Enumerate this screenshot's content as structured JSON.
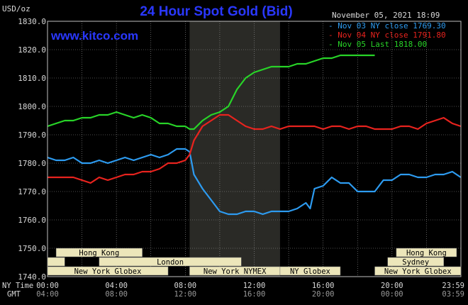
{
  "title": "24 Hour Spot Gold (Bid)",
  "unit_label": "USD/oz",
  "timestamp": "November 05, 2021 18:09",
  "watermark": "www.kitco.com",
  "colors": {
    "title": "#2a38ff",
    "watermark": "#2a38ff",
    "axis_text": "#d9d9d9",
    "grid": "#9a9a9a",
    "nymex_shade": "#2a2a26",
    "session_bar": "#ece6ba",
    "session_text": "#000000"
  },
  "legend": [
    {
      "label": "Nov 03 NY close 1769.30",
      "color": "#2d9bf0"
    },
    {
      "label": "Nov 04 NY close 1791.80",
      "color": "#e8231e"
    },
    {
      "label": "Nov 05 Last 1818.00",
      "color": "#28d428"
    }
  ],
  "sessions": {
    "row1": [
      {
        "label": "Hong Kong",
        "start": 0.5,
        "end": 5.5
      },
      {
        "label": "Hong Kong",
        "start": 20.25,
        "end": 23.75
      }
    ],
    "row2": [
      {
        "label": "",
        "start": 0,
        "end": 1
      },
      {
        "label": "London",
        "start": 3,
        "end": 11.25
      },
      {
        "label": "Sydney",
        "start": 19.75,
        "end": 23
      }
    ],
    "row3": [
      {
        "label": "New York Globex",
        "start": 0,
        "end": 7
      },
      {
        "label": "New York NYMEX",
        "start": 8.25,
        "end": 13.5
      },
      {
        "label": "NY Globex",
        "start": 13.5,
        "end": 17
      },
      {
        "label": "New York Globex",
        "start": 19,
        "end": 24
      }
    ]
  },
  "time_rows": {
    "ny_label": "NY Time",
    "gmt_label": "GMT",
    "ny_ticks": [
      "00:00",
      "04:00",
      "08:00",
      "12:00",
      "16:00",
      "20:00",
      "23:59"
    ],
    "gmt_ticks": [
      "04:00",
      "08:00",
      "12:00",
      "16:00",
      "20:00",
      "00:00",
      "03:59"
    ]
  },
  "chart_data": {
    "type": "line",
    "title": "24 Hour Spot Gold (Bid)",
    "ylabel": "USD/oz",
    "xlabel": "",
    "x_unit": "hours (NY time)",
    "xlim": [
      0,
      24
    ],
    "ylim": [
      1740,
      1830
    ],
    "y_ticks": [
      "1740.0",
      "1750.0",
      "1760.0",
      "1770.0",
      "1780.0",
      "1790.0",
      "1800.0",
      "1810.0",
      "1820.0",
      "1830.0"
    ],
    "x_ticks": [
      "00:00",
      "04:00",
      "08:00",
      "12:00",
      "16:00",
      "20:00",
      "23:59"
    ],
    "nymex_session": [
      8.25,
      13.5
    ],
    "grid": true,
    "legend_position": "top-right",
    "series": [
      {
        "name": "Nov 03 NY close 1769.30",
        "color": "#2d9bf0",
        "x": [
          0,
          0.5,
          1,
          1.5,
          2,
          2.5,
          3,
          3.5,
          4,
          4.5,
          5,
          5.5,
          6,
          6.5,
          7,
          7.5,
          8,
          8.25,
          8.5,
          9,
          9.5,
          10,
          10.5,
          11,
          11.5,
          12,
          12.5,
          13,
          13.5,
          14,
          14.5,
          15,
          15.25,
          15.5,
          16,
          16.5,
          17,
          17.5,
          18,
          18.5,
          19,
          19.5,
          20,
          20.5,
          21,
          21.5,
          22,
          22.5,
          23,
          23.5,
          23.99
        ],
        "y": [
          1782,
          1781,
          1781,
          1782,
          1780,
          1780,
          1781,
          1780,
          1781,
          1782,
          1781,
          1782,
          1783,
          1782,
          1783,
          1785,
          1785,
          1784,
          1776,
          1771,
          1767,
          1763,
          1762,
          1762,
          1763,
          1763,
          1762,
          1763,
          1763,
          1763,
          1764,
          1766,
          1764,
          1771,
          1772,
          1775,
          1773,
          1773,
          1770,
          1770,
          1770,
          1774,
          1774,
          1776,
          1776,
          1775,
          1775,
          1776,
          1776,
          1777,
          1775
        ]
      },
      {
        "name": "Nov 04 NY close 1791.80",
        "color": "#e8231e",
        "x": [
          0,
          0.5,
          1,
          1.5,
          2,
          2.5,
          3,
          3.5,
          4,
          4.5,
          5,
          5.5,
          6,
          6.5,
          7,
          7.5,
          8,
          8.25,
          8.5,
          9,
          9.5,
          10,
          10.5,
          11,
          11.5,
          12,
          12.5,
          13,
          13.5,
          14,
          14.5,
          15,
          15.5,
          16,
          16.5,
          17,
          17.5,
          18,
          18.5,
          19,
          19.5,
          20,
          20.5,
          21,
          21.5,
          22,
          22.5,
          23,
          23.5,
          23.99
        ],
        "y": [
          1775,
          1775,
          1775,
          1775,
          1774,
          1773,
          1775,
          1774,
          1775,
          1776,
          1776,
          1777,
          1777,
          1778,
          1780,
          1780,
          1781,
          1783,
          1788,
          1793,
          1795,
          1797,
          1797,
          1795,
          1793,
          1792,
          1792,
          1793,
          1792,
          1793,
          1793,
          1793,
          1793,
          1792,
          1793,
          1793,
          1792,
          1793,
          1793,
          1792,
          1792,
          1792,
          1793,
          1793,
          1792,
          1794,
          1795,
          1796,
          1794,
          1793
        ]
      },
      {
        "name": "Nov 05 Last 1818.00",
        "color": "#28d428",
        "x": [
          0,
          0.5,
          1,
          1.5,
          2,
          2.5,
          3,
          3.5,
          4,
          4.5,
          5,
          5.5,
          6,
          6.5,
          7,
          7.5,
          8,
          8.25,
          8.5,
          9,
          9.5,
          10,
          10.5,
          11,
          11.5,
          12,
          12.5,
          13,
          13.5,
          14,
          14.5,
          15,
          15.5,
          16,
          16.5,
          17,
          17.5,
          18,
          18.5,
          19
        ],
        "y": [
          1793,
          1794,
          1795,
          1795,
          1796,
          1796,
          1797,
          1797,
          1798,
          1797,
          1796,
          1797,
          1796,
          1794,
          1794,
          1793,
          1793,
          1792,
          1792,
          1795,
          1797,
          1798,
          1800,
          1806,
          1810,
          1812,
          1813,
          1814,
          1814,
          1814,
          1815,
          1815,
          1816,
          1817,
          1817,
          1818,
          1818,
          1818,
          1818,
          1818
        ]
      }
    ]
  }
}
